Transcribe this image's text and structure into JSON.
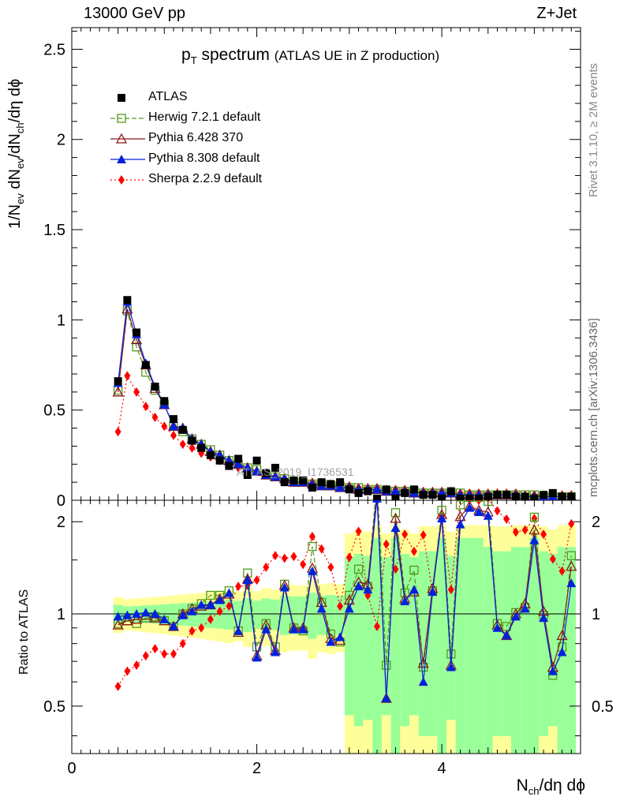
{
  "header": {
    "left": "13000 GeV pp",
    "right": "Z+Jet"
  },
  "title": {
    "main": "p",
    "main_sub": "T",
    "main_rest": " spectrum",
    "detail": "(ATLAS UE in Z production)"
  },
  "side_labels": {
    "rivet": "Rivet 3.1.10, ≥ 2M events",
    "mcplots": "mcplots.cern.ch [arXiv:1306.3436]"
  },
  "watermark": "ATLAS_2019_I1736531",
  "axes": {
    "ylabel_main": "1/N",
    "ylabel_main_sub1": "ev",
    "ylabel_main_mid": " dN",
    "ylabel_main_sub2": "ev",
    "ylabel_main_mid2": "/dN",
    "ylabel_main_sub3": "ch",
    "ylabel_main_end": "/dη dϕ",
    "ylabel_ratio": "Ratio to ATLAS",
    "xlabel_pre": "N",
    "xlabel_sub": "ch",
    "xlabel_post": "/dη dϕ"
  },
  "legend": [
    {
      "label": "ATLAS",
      "color": "#000000",
      "marker": "square-filled"
    },
    {
      "label": "Herwig 7.2.1 default",
      "color": "#4f9a1a",
      "marker": "square-open",
      "dash": "dashed"
    },
    {
      "label": "Pythia 6.428 370",
      "color": "#8b1a1a",
      "marker": "triangle-open",
      "dash": "solid"
    },
    {
      "label": "Pythia 8.308 default",
      "color": "#0022dd",
      "marker": "triangle-filled",
      "dash": "solid"
    },
    {
      "label": "Sherpa 2.2.9 default",
      "color": "#ff0000",
      "marker": "diamond-filled",
      "dash": "dotted"
    }
  ],
  "chart_data": {
    "type": "scatter",
    "x_range": [
      0,
      5.5
    ],
    "y_range_main": [
      0,
      2.62
    ],
    "y_range_ratio": [
      0.35,
      2.35
    ],
    "y_ticks_main": [
      "0",
      "0.5",
      "1",
      "1.5",
      "2",
      "2.5"
    ],
    "y_ticks_ratio": [
      "0.5",
      "1",
      "2"
    ],
    "x_ticks": [
      "0",
      "2",
      "4"
    ],
    "x": [
      0.5,
      0.6,
      0.7,
      0.8,
      0.9,
      1.0,
      1.1,
      1.2,
      1.3,
      1.4,
      1.5,
      1.6,
      1.7,
      1.8,
      1.9,
      2.0,
      2.1,
      2.2,
      2.3,
      2.4,
      2.5,
      2.6,
      2.7,
      2.8,
      2.9,
      3.0,
      3.1,
      3.2,
      3.3,
      3.4,
      3.5,
      3.6,
      3.7,
      3.8,
      3.9,
      4.0,
      4.1,
      4.2,
      4.3,
      4.4,
      4.5,
      4.6,
      4.7,
      4.8,
      4.9,
      5.0,
      5.1,
      5.2,
      5.3,
      5.4
    ],
    "series": [
      {
        "name": "ATLAS",
        "values": [
          0.66,
          1.11,
          0.93,
          0.75,
          0.63,
          0.55,
          0.45,
          0.39,
          0.33,
          0.29,
          0.25,
          0.22,
          0.19,
          0.23,
          0.14,
          0.22,
          0.15,
          0.18,
          0.1,
          0.11,
          0.11,
          0.07,
          0.1,
          0.09,
          0.1,
          0.06,
          0.04,
          0.05,
          0.01,
          0.06,
          0.01,
          0.04,
          0.06,
          0.03,
          0.03,
          0.01,
          0.05,
          0.01,
          0.01,
          0.01,
          0.02,
          0.03,
          0.03,
          0.02,
          0.02,
          0.01,
          0.03,
          0.04,
          0.02,
          0.02
        ]
      },
      {
        "name": "Herwig 7.2.1 default",
        "values": [
          0.61,
          1.05,
          0.85,
          0.71,
          0.61,
          0.53,
          0.41,
          0.38,
          0.34,
          0.31,
          0.28,
          0.25,
          0.22,
          0.2,
          0.18,
          0.17,
          0.14,
          0.13,
          0.12,
          0.1,
          0.1,
          0.09,
          0.09,
          0.08,
          0.08,
          0.07,
          0.07,
          0.06,
          0.06,
          0.05,
          0.05,
          0.05,
          0.05,
          0.04,
          0.04,
          0.04,
          0.04,
          0.04,
          0.03,
          0.03,
          0.03,
          0.03,
          0.03,
          0.03,
          0.03,
          0.03,
          0.02,
          0.02,
          0.02,
          0.02
        ]
      },
      {
        "name": "Pythia 6.428 370",
        "values": [
          0.6,
          1.06,
          0.89,
          0.75,
          0.62,
          0.53,
          0.41,
          0.4,
          0.34,
          0.31,
          0.27,
          0.25,
          0.22,
          0.2,
          0.18,
          0.16,
          0.14,
          0.13,
          0.12,
          0.1,
          0.1,
          0.09,
          0.08,
          0.08,
          0.07,
          0.07,
          0.06,
          0.06,
          0.06,
          0.05,
          0.05,
          0.05,
          0.04,
          0.04,
          0.04,
          0.04,
          0.04,
          0.03,
          0.03,
          0.03,
          0.03,
          0.03,
          0.03,
          0.03,
          0.02,
          0.02,
          0.02,
          0.02,
          0.02,
          0.02
        ]
      },
      {
        "name": "Pythia 8.308 default",
        "values": [
          0.65,
          1.1,
          0.92,
          0.76,
          0.63,
          0.53,
          0.41,
          0.4,
          0.34,
          0.31,
          0.27,
          0.25,
          0.22,
          0.2,
          0.18,
          0.16,
          0.14,
          0.13,
          0.12,
          0.1,
          0.1,
          0.09,
          0.08,
          0.08,
          0.07,
          0.07,
          0.06,
          0.06,
          0.06,
          0.05,
          0.05,
          0.05,
          0.04,
          0.04,
          0.04,
          0.04,
          0.04,
          0.03,
          0.03,
          0.03,
          0.03,
          0.03,
          0.03,
          0.03,
          0.02,
          0.02,
          0.02,
          0.02,
          0.02,
          0.02
        ]
      },
      {
        "name": "Sherpa 2.2.9 default",
        "values": [
          0.38,
          0.69,
          0.6,
          0.52,
          0.46,
          0.41,
          0.36,
          0.31,
          0.29,
          0.26,
          0.24,
          0.22,
          0.2,
          0.18,
          0.17,
          0.16,
          0.15,
          0.13,
          0.12,
          0.11,
          0.1,
          0.1,
          0.09,
          0.09,
          0.08,
          0.08,
          0.07,
          0.07,
          0.07,
          0.06,
          0.06,
          0.06,
          0.05,
          0.05,
          0.05,
          0.05,
          0.05,
          0.04,
          0.04,
          0.04,
          0.04,
          0.04,
          0.04,
          0.04,
          0.03,
          0.03,
          0.03,
          0.03,
          0.03,
          0.03
        ]
      }
    ],
    "ratio_series": [
      {
        "name": "Herwig 7.2.1 default",
        "values": [
          0.93,
          0.95,
          0.93,
          0.97,
          0.98,
          0.95,
          0.91,
          1.0,
          1.04,
          1.08,
          1.15,
          1.15,
          1.19,
          0.88,
          1.36,
          0.78,
          0.93,
          0.78,
          1.25,
          0.9,
          0.88,
          1.66,
          1.09,
          0.86,
          0.81,
          1.15,
          1.4,
          1.23,
          2.75,
          0.68,
          2.14,
          1.17,
          1.39,
          0.67,
          1.19,
          2.18,
          0.74,
          2.27,
          2.4,
          2.4,
          2.33,
          0.93,
          0.91,
          1.01,
          1.05,
          2.07,
          0.99,
          0.63,
          0.78,
          1.55
        ]
      },
      {
        "name": "Pythia 6.428 370",
        "values": [
          0.92,
          0.95,
          0.96,
          0.99,
          0.97,
          0.95,
          0.91,
          1.0,
          1.04,
          1.06,
          1.07,
          1.12,
          1.16,
          0.87,
          1.3,
          0.73,
          0.92,
          0.76,
          1.24,
          0.9,
          0.9,
          1.41,
          1.09,
          0.83,
          0.82,
          1.11,
          1.27,
          1.25,
          2.5,
          0.53,
          2.05,
          1.12,
          1.18,
          0.69,
          1.21,
          2.11,
          0.68,
          2.08,
          2.25,
          2.18,
          2.15,
          0.92,
          0.85,
          1.0,
          1.08,
          1.88,
          1.02,
          0.67,
          0.85,
          1.43
        ]
      },
      {
        "name": "Pythia 8.308 default",
        "values": [
          0.98,
          0.99,
          1.0,
          1.01,
          1.0,
          0.96,
          0.91,
          0.99,
          1.02,
          1.07,
          1.07,
          1.11,
          1.17,
          0.88,
          1.29,
          0.72,
          0.89,
          0.75,
          1.22,
          0.89,
          0.89,
          1.38,
          1.04,
          0.81,
          0.84,
          1.04,
          1.23,
          1.2,
          2.38,
          0.53,
          1.91,
          1.1,
          1.2,
          0.6,
          1.18,
          2.05,
          0.67,
          1.96,
          2.22,
          2.15,
          2.09,
          0.9,
          0.85,
          0.98,
          1.04,
          1.74,
          0.97,
          0.65,
          0.75,
          1.26
        ]
      },
      {
        "name": "Sherpa 2.2.9 default",
        "values": [
          0.58,
          0.65,
          0.68,
          0.73,
          0.77,
          0.74,
          0.74,
          0.8,
          0.88,
          0.9,
          0.96,
          1.02,
          1.06,
          1.23,
          1.24,
          1.29,
          1.42,
          1.55,
          1.52,
          1.54,
          1.45,
          1.79,
          1.63,
          1.42,
          1.06,
          1.53,
          1.86,
          1.15,
          0.91,
          1.69,
          1.4,
          1.82,
          1.6,
          1.81,
          1.18,
          2.08,
          1.2,
          2.42,
          2.38,
          2.35,
          2.38,
          2.17,
          2.04,
          1.85,
          1.88,
          2.05,
          1.82,
          1.51,
          1.38,
          1.97
        ]
      }
    ]
  }
}
